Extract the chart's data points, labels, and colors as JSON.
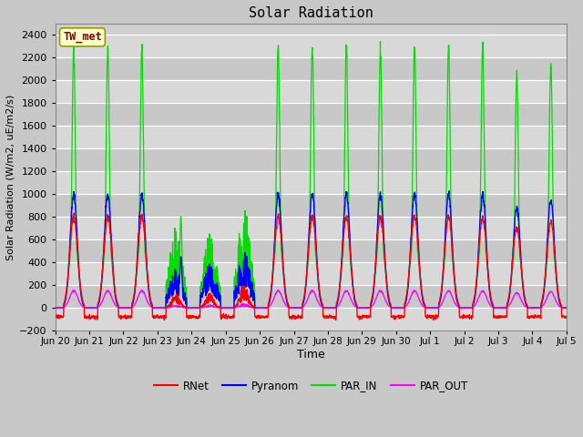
{
  "title": "Solar Radiation",
  "xlabel": "Time",
  "ylabel": "Solar Radiation (W/m2, uE/m2/s)",
  "ylim": [
    -200,
    2500
  ],
  "yticks": [
    -200,
    0,
    200,
    400,
    600,
    800,
    1000,
    1200,
    1400,
    1600,
    1800,
    2000,
    2200,
    2400
  ],
  "colors": {
    "RNet": "#ff0000",
    "Pyranom": "#0000ff",
    "PAR_IN": "#00dd00",
    "PAR_OUT": "#ff00ff"
  },
  "legend_labels": [
    "RNet",
    "Pyranom",
    "PAR_IN",
    "PAR_OUT"
  ],
  "station_label": "TW_met",
  "station_box_color": "#ffffcc",
  "station_box_edge": "#999900",
  "station_text_color": "#880000",
  "plot_bg_bands": [
    "#d8d8d8",
    "#e8e8e8"
  ],
  "grid_color": "#ffffff",
  "n_days": 15,
  "xtick_labels": [
    "Jun 20",
    "Jun 21",
    "Jun 22",
    "Jun 23",
    "Jun 24",
    "Jun 25",
    "Jun 26",
    "Jun 27",
    "Jun 28",
    "Jun 29",
    "Jun 30",
    "Jul 1",
    "Jul 2",
    "Jul 3",
    "Jul 4",
    "Jul 5"
  ],
  "par_in_max": 2300,
  "pyranom_max": 1000,
  "rnet_max": 800,
  "par_out_max": 150,
  "figsize": [
    6.4,
    4.8
  ],
  "dpi": 100
}
